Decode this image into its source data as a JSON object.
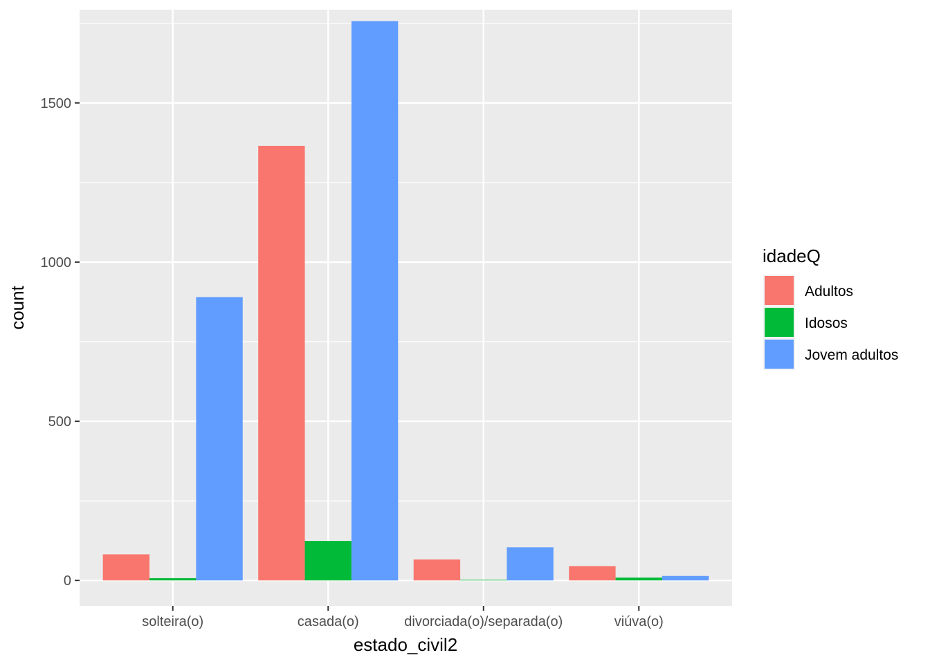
{
  "chart_data": {
    "type": "bar",
    "xlabel": "estado_civil2",
    "ylabel": "count",
    "categories": [
      "solteira(o)",
      "casada(o)",
      "divorciada(o)/separada(o)",
      "viúva(o)"
    ],
    "series": [
      {
        "name": "Adultos",
        "color": "#F8766D",
        "values": [
          82,
          1365,
          66,
          45
        ]
      },
      {
        "name": "Idosos",
        "color": "#00BA38",
        "values": [
          7,
          124,
          2,
          9
        ]
      },
      {
        "name": "Jovem adultos",
        "color": "#619CFF",
        "values": [
          890,
          1757,
          104,
          14
        ]
      }
    ],
    "ylim": [
      -80,
      1757
    ],
    "yticks": [
      0,
      500,
      1000,
      1500
    ],
    "yticks_labels": [
      "0",
      "500",
      "1000",
      "1500"
    ],
    "grid": true,
    "legend": {
      "title": "idadeQ",
      "position": "right"
    },
    "colors": {
      "panel_bg": "#EBEBEB",
      "grid": "#FFFFFF"
    }
  }
}
